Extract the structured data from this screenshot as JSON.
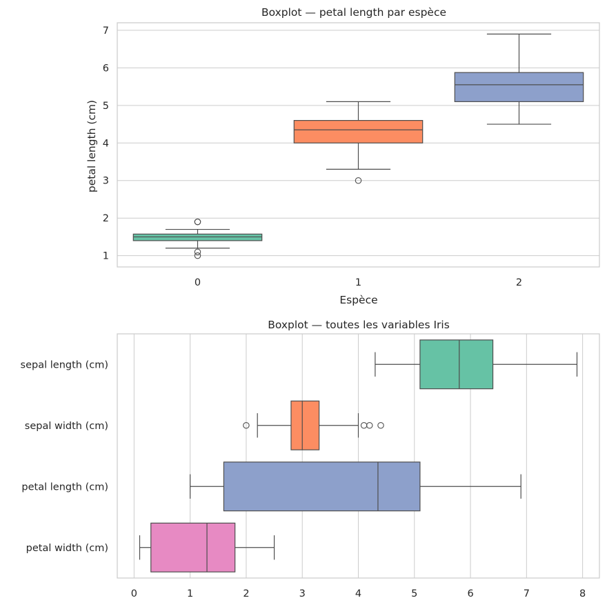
{
  "chart_data": [
    {
      "type": "boxplot",
      "orientation": "vertical",
      "title": "Boxplot — petal length par espèce",
      "xlabel": "Espèce",
      "ylabel": "petal length (cm)",
      "ylim": [
        0.7,
        7.2
      ],
      "yticks": [
        "1",
        "2",
        "3",
        "4",
        "5",
        "6",
        "7"
      ],
      "grid": true,
      "categories": [
        "0",
        "1",
        "2"
      ],
      "boxes": [
        {
          "name": "0",
          "color": "#66c2a5",
          "whisker_low": 1.2,
          "q1": 1.4,
          "median": 1.5,
          "q3": 1.575,
          "whisker_high": 1.7,
          "outliers": [
            1.0,
            1.1,
            1.9,
            1.9
          ]
        },
        {
          "name": "1",
          "color": "#fc8d62",
          "whisker_low": 3.3,
          "q1": 4.0,
          "median": 4.35,
          "q3": 4.6,
          "whisker_high": 5.1,
          "outliers": [
            3.0
          ]
        },
        {
          "name": "2",
          "color": "#8da0cb",
          "whisker_low": 4.5,
          "q1": 5.1,
          "median": 5.55,
          "q3": 5.875,
          "whisker_high": 6.9,
          "outliers": []
        }
      ]
    },
    {
      "type": "boxplot",
      "orientation": "horizontal",
      "title": "Boxplot — toutes les variables Iris",
      "xlabel": "",
      "ylabel": "",
      "xlim": [
        -0.3,
        8.3
      ],
      "xticks": [
        "0",
        "1",
        "2",
        "3",
        "4",
        "5",
        "6",
        "7",
        "8"
      ],
      "grid": true,
      "categories": [
        "sepal length (cm)",
        "sepal width (cm)",
        "petal length (cm)",
        "petal width (cm)"
      ],
      "boxes": [
        {
          "name": "sepal length (cm)",
          "color": "#66c2a5",
          "whisker_low": 4.3,
          "q1": 5.1,
          "median": 5.8,
          "q3": 6.4,
          "whisker_high": 7.9,
          "outliers": []
        },
        {
          "name": "sepal width (cm)",
          "color": "#fc8d62",
          "whisker_low": 2.2,
          "q1": 2.8,
          "median": 3.0,
          "q3": 3.3,
          "whisker_high": 4.0,
          "outliers": [
            2.0,
            4.1,
            4.2,
            4.4
          ]
        },
        {
          "name": "petal length (cm)",
          "color": "#8da0cb",
          "whisker_low": 1.0,
          "q1": 1.6,
          "median": 4.35,
          "q3": 5.1,
          "whisker_high": 6.9,
          "outliers": []
        },
        {
          "name": "petal width (cm)",
          "color": "#e78ac3",
          "whisker_low": 0.1,
          "q1": 0.3,
          "median": 1.3,
          "q3": 1.8,
          "whisker_high": 2.5,
          "outliers": []
        }
      ]
    }
  ]
}
